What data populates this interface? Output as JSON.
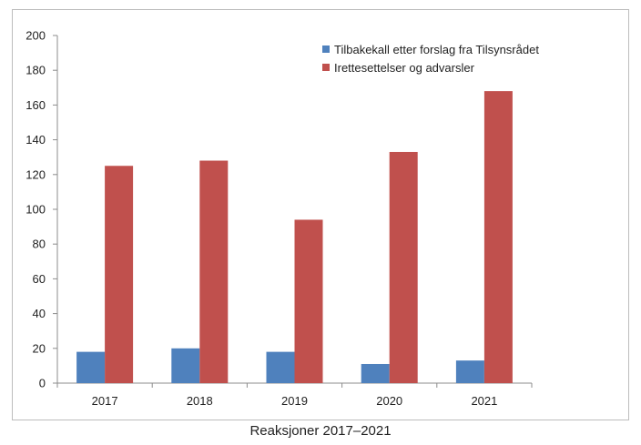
{
  "caption": "Reaksjoner 2017–2021",
  "chart_data": {
    "type": "bar",
    "categories": [
      "2017",
      "2018",
      "2019",
      "2020",
      "2021"
    ],
    "series": [
      {
        "name": "Tilbakekall etter forslag fra Tilsynsrådet",
        "color": "#4f81bd",
        "values": [
          18,
          20,
          18,
          11,
          13
        ]
      },
      {
        "name": "Irettesettelser og advarsler",
        "color": "#c0504d",
        "values": [
          125,
          128,
          94,
          133,
          168
        ]
      }
    ],
    "title": "",
    "xlabel": "",
    "ylabel": "",
    "ylim": [
      0,
      200
    ],
    "yticks": [
      0,
      20,
      40,
      60,
      80,
      100,
      120,
      140,
      160,
      180,
      200
    ],
    "grid": false,
    "legend_position": "top-right"
  }
}
